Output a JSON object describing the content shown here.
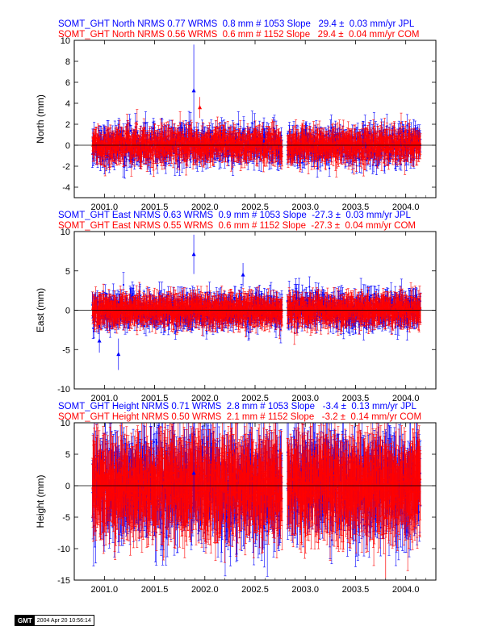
{
  "chart_data": [
    {
      "type": "scatter",
      "ylabel": "North (mm)",
      "xlim": [
        2000.7,
        2004.3
      ],
      "ylim": [
        -5,
        10
      ],
      "yticks": [
        -4,
        -2,
        0,
        2,
        4,
        6,
        8,
        10
      ],
      "xticks": [
        "2001.0",
        "2001.5",
        "2002.0",
        "2002.5",
        "2003.0",
        "2003.5",
        "2004.0"
      ],
      "legend": [
        {
          "text": "SOMT_GHT North NRMS 0.77 WRMS  0.8 mm # 1053 Slope   29.4 ±  0.03 mm/yr JPL",
          "color": "#0000ff"
        },
        {
          "text": "SOMT_GHT North NRMS 0.56 WRMS  0.6 mm # 1152 Slope   29.4 ±  0.04 mm/yr COM",
          "color": "#ff0000"
        }
      ],
      "series": [
        {
          "color": "#0000ff",
          "n": 1053,
          "wrms": 0.8,
          "nrms": 0.77,
          "slope": 29.4,
          "slope_err": 0.03,
          "err": 0.9
        },
        {
          "color": "#ff0000",
          "n": 1152,
          "wrms": 0.6,
          "nrms": 0.56,
          "slope": 29.4,
          "slope_err": 0.04,
          "err": 1.0
        }
      ],
      "outliers": [
        {
          "x": 2001.89,
          "y": 5.2,
          "color": "#0000ff",
          "err": 4.4
        },
        {
          "x": 2001.95,
          "y": 3.6,
          "color": "#ff0000",
          "err": 1.0
        }
      ]
    },
    {
      "type": "scatter",
      "ylabel": "East (mm)",
      "xlim": [
        2000.7,
        2004.3
      ],
      "ylim": [
        -10,
        10
      ],
      "yticks": [
        -10,
        -5,
        0,
        5,
        10
      ],
      "xticks": [
        "2001.0",
        "2001.5",
        "2002.0",
        "2002.5",
        "2003.0",
        "2003.5",
        "2004.0"
      ],
      "legend": [
        {
          "text": "SOMT_GHT East NRMS 0.63 WRMS  0.9 mm # 1053 Slope  -27.3 ±  0.03 mm/yr JPL",
          "color": "#0000ff"
        },
        {
          "text": "SOMT_GHT East NRMS 0.55 WRMS  0.6 mm # 1152 Slope  -27.3 ±  0.04 mm/yr COM",
          "color": "#ff0000"
        }
      ],
      "series": [
        {
          "color": "#0000ff",
          "n": 1053,
          "wrms": 0.9,
          "nrms": 0.63,
          "slope": -27.3,
          "slope_err": 0.03,
          "err": 1.3
        },
        {
          "color": "#ff0000",
          "n": 1152,
          "wrms": 0.6,
          "nrms": 0.55,
          "slope": -27.3,
          "slope_err": 0.04,
          "err": 1.4
        }
      ],
      "outliers": [
        {
          "x": 2001.89,
          "y": 7.1,
          "color": "#0000ff",
          "err": 2.5
        },
        {
          "x": 2000.95,
          "y": -3.9,
          "color": "#0000ff",
          "err": 1.5
        },
        {
          "x": 2001.14,
          "y": -5.6,
          "color": "#0000ff",
          "err": 2.0
        },
        {
          "x": 2002.38,
          "y": 4.5,
          "color": "#0000ff",
          "err": 1.5
        }
      ]
    },
    {
      "type": "scatter",
      "ylabel": "Height (mm)",
      "xlim": [
        2000.7,
        2004.3
      ],
      "ylim": [
        -15,
        10
      ],
      "yticks": [
        -15,
        -10,
        -5,
        0,
        5,
        10
      ],
      "xticks": [
        "2001.0",
        "2001.5",
        "2002.0",
        "2002.5",
        "2003.0",
        "2003.5",
        "2004.0"
      ],
      "legend": [
        {
          "text": "SOMT_GHT Height NRMS 0.71 WRMS  2.8 mm # 1053 Slope   -3.4 ±  0.13 mm/yr JPL",
          "color": "#0000ff"
        },
        {
          "text": "SOMT_GHT Height NRMS 0.50 WRMS  2.1 mm # 1152 Slope   -3.2 ±  0.14 mm/yr COM",
          "color": "#ff0000"
        }
      ],
      "series": [
        {
          "color": "#0000ff",
          "n": 1053,
          "wrms": 2.8,
          "nrms": 0.71,
          "slope": -3.4,
          "slope_err": 0.13,
          "err": 5.0
        },
        {
          "color": "#ff0000",
          "n": 1152,
          "wrms": 2.1,
          "nrms": 0.5,
          "slope": -3.2,
          "slope_err": 0.14,
          "err": 5.5
        }
      ],
      "outliers": [
        {
          "x": 2003.8,
          "y": -5.0,
          "color": "#ff0000",
          "err": 10
        },
        {
          "x": 2001.89,
          "y": 2.0,
          "color": "#0000ff",
          "err": 8
        }
      ]
    }
  ],
  "gaps": [
    [
      2002.77,
      2002.82
    ]
  ],
  "footer": {
    "logo": "GMT",
    "timestamp": "2004 Apr 20 10:56:14"
  }
}
